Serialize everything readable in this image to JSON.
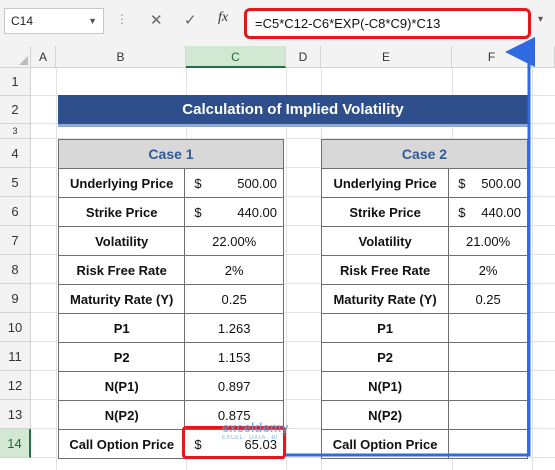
{
  "formula_bar": {
    "name_box": "C14",
    "cancel_glyph": "✕",
    "enter_glyph": "✓",
    "fx_label": "fx",
    "formula": "=C5*C12-C6*EXP(-C8*C9)*C13"
  },
  "columns": [
    "A",
    "B",
    "C",
    "D",
    "E",
    "F"
  ],
  "rows": [
    "1",
    "2",
    "3",
    "4",
    "5",
    "6",
    "7",
    "8",
    "9",
    "10",
    "11",
    "12",
    "13",
    "14"
  ],
  "title": "Calculation of Implied Volatility",
  "case1": {
    "header": "Case 1",
    "rows": [
      {
        "label": "Underlying Price",
        "currency": "$",
        "value": "500.00"
      },
      {
        "label": "Strike Price",
        "currency": "$",
        "value": "440.00"
      },
      {
        "label": "Volatility",
        "currency": "",
        "value": "22.00%"
      },
      {
        "label": "Risk Free Rate",
        "currency": "",
        "value": "2%"
      },
      {
        "label": "Maturity Rate (Y)",
        "currency": "",
        "value": "0.25"
      },
      {
        "label": "P1",
        "currency": "",
        "value": "1.263"
      },
      {
        "label": "P2",
        "currency": "",
        "value": "1.153"
      },
      {
        "label": "N(P1)",
        "currency": "",
        "value": "0.897"
      },
      {
        "label": "N(P2)",
        "currency": "",
        "value": "0.875"
      },
      {
        "label": "Call Option Price",
        "currency": "$",
        "value": "65.03"
      }
    ]
  },
  "case2": {
    "header": "Case 2",
    "rows": [
      {
        "label": "Underlying Price",
        "currency": "$",
        "value": "500.00"
      },
      {
        "label": "Strike Price",
        "currency": "$",
        "value": "440.00"
      },
      {
        "label": "Volatility",
        "currency": "",
        "value": "21.00%"
      },
      {
        "label": "Risk Free Rate",
        "currency": "",
        "value": "2%"
      },
      {
        "label": "Maturity Rate (Y)",
        "currency": "",
        "value": "0.25"
      },
      {
        "label": "P1",
        "currency": "",
        "value": ""
      },
      {
        "label": "P2",
        "currency": "",
        "value": ""
      },
      {
        "label": "N(P1)",
        "currency": "",
        "value": ""
      },
      {
        "label": "N(P2)",
        "currency": "",
        "value": ""
      },
      {
        "label": "Call Option Price",
        "currency": "",
        "value": ""
      }
    ]
  },
  "watermark": {
    "name": "exceldemy",
    "tagline": "EXCEL · DATA · BI"
  },
  "colors": {
    "title_bg": "#2f4f8c",
    "header_bg": "#d8d8d8",
    "header_text": "#2f5b9a",
    "highlight": "#e8151c",
    "arrow": "#2f6ae0"
  }
}
